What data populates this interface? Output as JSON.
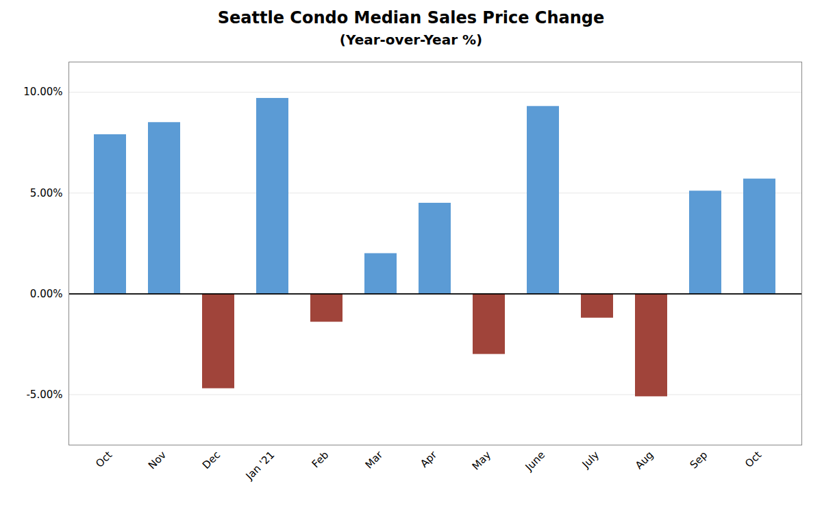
{
  "chart_data": {
    "type": "bar",
    "title": "Seattle Condo Median Sales Price Change",
    "subtitle": "(Year-over-Year %)",
    "categories": [
      "Oct",
      "Nov",
      "Dec",
      "Jan '21",
      "Feb",
      "Mar",
      "Apr",
      "May",
      "June",
      "July",
      "Aug",
      "Sep",
      "Oct"
    ],
    "values": [
      7.9,
      8.5,
      -4.7,
      9.7,
      -1.4,
      2.0,
      4.5,
      -3.0,
      9.3,
      -1.2,
      -5.1,
      5.1,
      5.7
    ],
    "colors": [
      "#5B9BD5",
      "#5B9BD5",
      "#A0443A",
      "#5B9BD5",
      "#A0443A",
      "#5B9BD5",
      "#5B9BD5",
      "#A0443A",
      "#5B9BD5",
      "#A0443A",
      "#A0443A",
      "#5B9BD5",
      "#5B9BD5"
    ],
    "ylim": [
      -7.5,
      11.5
    ],
    "yticks": [
      {
        "value": -5.0,
        "label": "-5.00%"
      },
      {
        "value": 0.0,
        "label": "0.00%"
      },
      {
        "value": 5.0,
        "label": "5.00%"
      },
      {
        "value": 10.0,
        "label": "10.00%"
      }
    ],
    "grid": true
  }
}
